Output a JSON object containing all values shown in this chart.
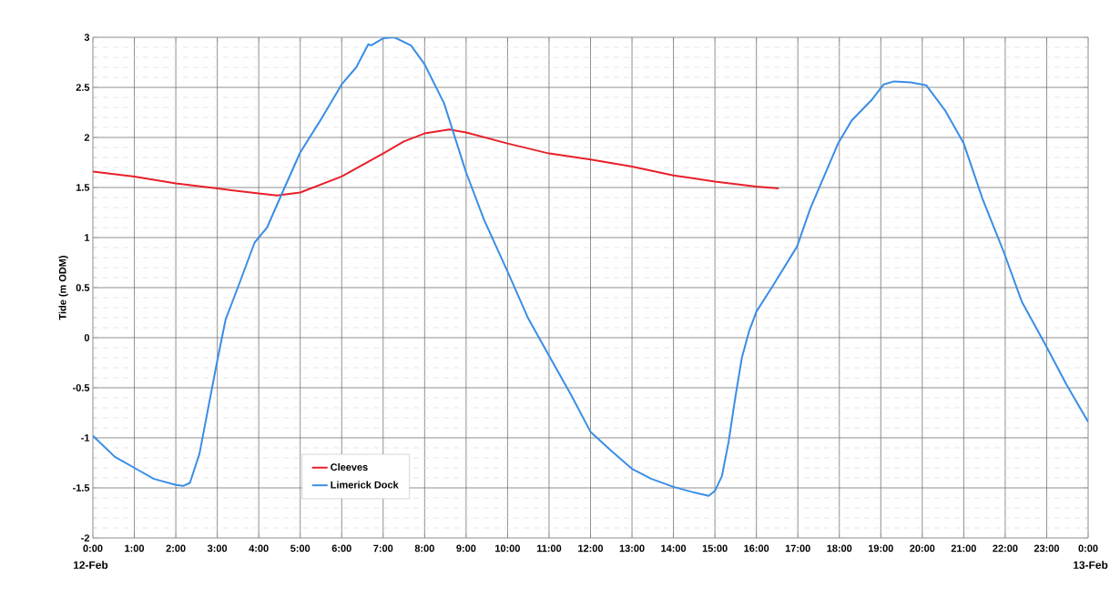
{
  "chart_data": {
    "type": "line",
    "ylabel": "Tide (m ODM)",
    "xlim": [
      0,
      24
    ],
    "xticks": [
      {
        "value": 0,
        "label": "0:00"
      },
      {
        "value": 1,
        "label": "1:00"
      },
      {
        "value": 2,
        "label": "2:00"
      },
      {
        "value": 3,
        "label": "3:00"
      },
      {
        "value": 4,
        "label": "4:00"
      },
      {
        "value": 5,
        "label": "5:00"
      },
      {
        "value": 6,
        "label": "6:00"
      },
      {
        "value": 7,
        "label": "7:00"
      },
      {
        "value": 8,
        "label": "8:00"
      },
      {
        "value": 9,
        "label": "9:00"
      },
      {
        "value": 10,
        "label": "10:00"
      },
      {
        "value": 11,
        "label": "11:00"
      },
      {
        "value": 12,
        "label": "12:00"
      },
      {
        "value": 13,
        "label": "13:00"
      },
      {
        "value": 14,
        "label": "14:00"
      },
      {
        "value": 15,
        "label": "15:00"
      },
      {
        "value": 16,
        "label": "16:00"
      },
      {
        "value": 17,
        "label": "17:00"
      },
      {
        "value": 18,
        "label": "18:00"
      },
      {
        "value": 19,
        "label": "19:00"
      },
      {
        "value": 20,
        "label": "20:00"
      },
      {
        "value": 21,
        "label": "21:00"
      },
      {
        "value": 22,
        "label": "22:00"
      },
      {
        "value": 23,
        "label": "23:00"
      },
      {
        "value": 24,
        "label": "0:00"
      }
    ],
    "ylim": [
      -2,
      3
    ],
    "yticks": [
      -2,
      -1.5,
      -1,
      -0.5,
      0,
      0.5,
      1,
      1.5,
      2,
      2.5,
      3
    ],
    "grid": true,
    "legend": "bottom left",
    "marker": "none",
    "line_style": "solid",
    "annotations": [
      "12-Feb",
      "13-Feb"
    ],
    "series": [
      {
        "name": "Cleeves",
        "color": "#e8202a",
        "x": [
          0,
          1,
          2,
          3,
          4,
          4.44,
          5,
          6,
          7,
          7.5,
          8,
          8.6,
          9,
          10,
          11,
          12,
          13,
          14,
          15,
          16,
          16.54
        ],
        "values": [
          1.66,
          1.61,
          1.54,
          1.49,
          1.44,
          1.42,
          1.45,
          1.61,
          1.84,
          1.96,
          2.04,
          2.08,
          2.05,
          1.94,
          1.84,
          1.78,
          1.71,
          1.62,
          1.56,
          1.51,
          1.49
        ]
      },
      {
        "name": "Limerick Dock",
        "color": "#3a8ee6",
        "x": [
          0,
          0.53,
          1,
          1.47,
          2,
          2.18,
          2.34,
          2.57,
          2.81,
          3,
          3.2,
          3.54,
          3.9,
          4.2,
          4.57,
          5,
          5.47,
          6,
          6.35,
          6.64,
          6.71,
          7,
          7.27,
          7.67,
          8,
          8.47,
          9,
          9.43,
          10,
          10.5,
          11,
          11.53,
          12,
          12.5,
          13,
          13.47,
          14,
          14.44,
          14.85,
          15,
          15.17,
          15.33,
          15.49,
          15.65,
          15.82,
          16,
          16.4,
          16.98,
          17.3,
          17.97,
          18.3,
          18.77,
          19.07,
          19.32,
          19.72,
          20.1,
          20.55,
          21,
          21.45,
          21.97,
          22.4,
          22.97,
          23.48,
          24
        ],
        "values": [
          -0.98,
          -1.19,
          -1.3,
          -1.41,
          -1.47,
          -1.48,
          -1.45,
          -1.16,
          -0.64,
          -0.23,
          0.18,
          0.55,
          0.95,
          1.1,
          1.45,
          1.85,
          2.16,
          2.53,
          2.7,
          2.93,
          2.92,
          2.99,
          3,
          2.92,
          2.73,
          2.34,
          1.65,
          1.18,
          0.66,
          0.19,
          -0.18,
          -0.57,
          -0.94,
          -1.13,
          -1.31,
          -1.41,
          -1.49,
          -1.54,
          -1.58,
          -1.53,
          -1.38,
          -1.04,
          -0.6,
          -0.2,
          0.06,
          0.26,
          0.52,
          0.91,
          1.29,
          1.94,
          2.17,
          2.37,
          2.53,
          2.56,
          2.55,
          2.52,
          2.27,
          1.94,
          1.39,
          0.85,
          0.36,
          -0.07,
          -0.47,
          -0.84
        ]
      }
    ]
  }
}
